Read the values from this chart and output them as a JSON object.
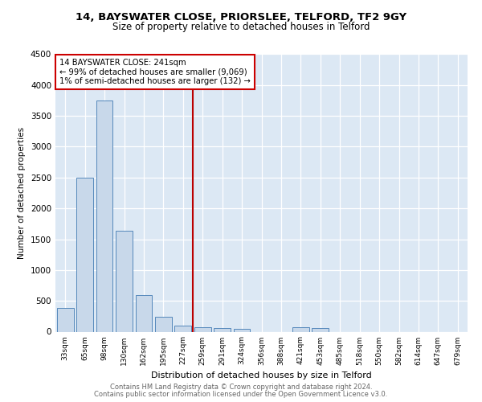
{
  "title1": "14, BAYSWATER CLOSE, PRIORSLEE, TELFORD, TF2 9GY",
  "title2": "Size of property relative to detached houses in Telford",
  "xlabel": "Distribution of detached houses by size in Telford",
  "ylabel": "Number of detached properties",
  "bar_labels": [
    "33sqm",
    "65sqm",
    "98sqm",
    "130sqm",
    "162sqm",
    "195sqm",
    "227sqm",
    "259sqm",
    "291sqm",
    "324sqm",
    "356sqm",
    "388sqm",
    "421sqm",
    "453sqm",
    "485sqm",
    "518sqm",
    "550sqm",
    "582sqm",
    "614sqm",
    "647sqm",
    "679sqm"
  ],
  "bar_values": [
    380,
    2500,
    3750,
    1640,
    600,
    240,
    100,
    70,
    55,
    50,
    0,
    0,
    70,
    55,
    0,
    0,
    0,
    0,
    0,
    0,
    0
  ],
  "bar_color": "#c8d8ea",
  "bar_edge_color": "#5588bb",
  "ylim": [
    0,
    4500
  ],
  "yticks": [
    0,
    500,
    1000,
    1500,
    2000,
    2500,
    3000,
    3500,
    4000,
    4500
  ],
  "vline_x_idx": 6.5,
  "vline_color": "#bb0000",
  "annotation_title": "14 BAYSWATER CLOSE: 241sqm",
  "annotation_line1": "← 99% of detached houses are smaller (9,069)",
  "annotation_line2": "1% of semi-detached houses are larger (132) →",
  "annotation_box_facecolor": "#ffffff",
  "annotation_box_edgecolor": "#cc0000",
  "footer1": "Contains HM Land Registry data © Crown copyright and database right 2024.",
  "footer2": "Contains public sector information licensed under the Open Government Licence v3.0.",
  "bg_color": "#dce8f4",
  "grid_color": "#ffffff",
  "title1_fontsize": 9.5,
  "title2_fontsize": 8.5,
  "ylabel_fontsize": 7.5,
  "xlabel_fontsize": 8.0,
  "tick_fontsize": 7.5,
  "xtick_fontsize": 6.5,
  "footer_fontsize": 6.0
}
